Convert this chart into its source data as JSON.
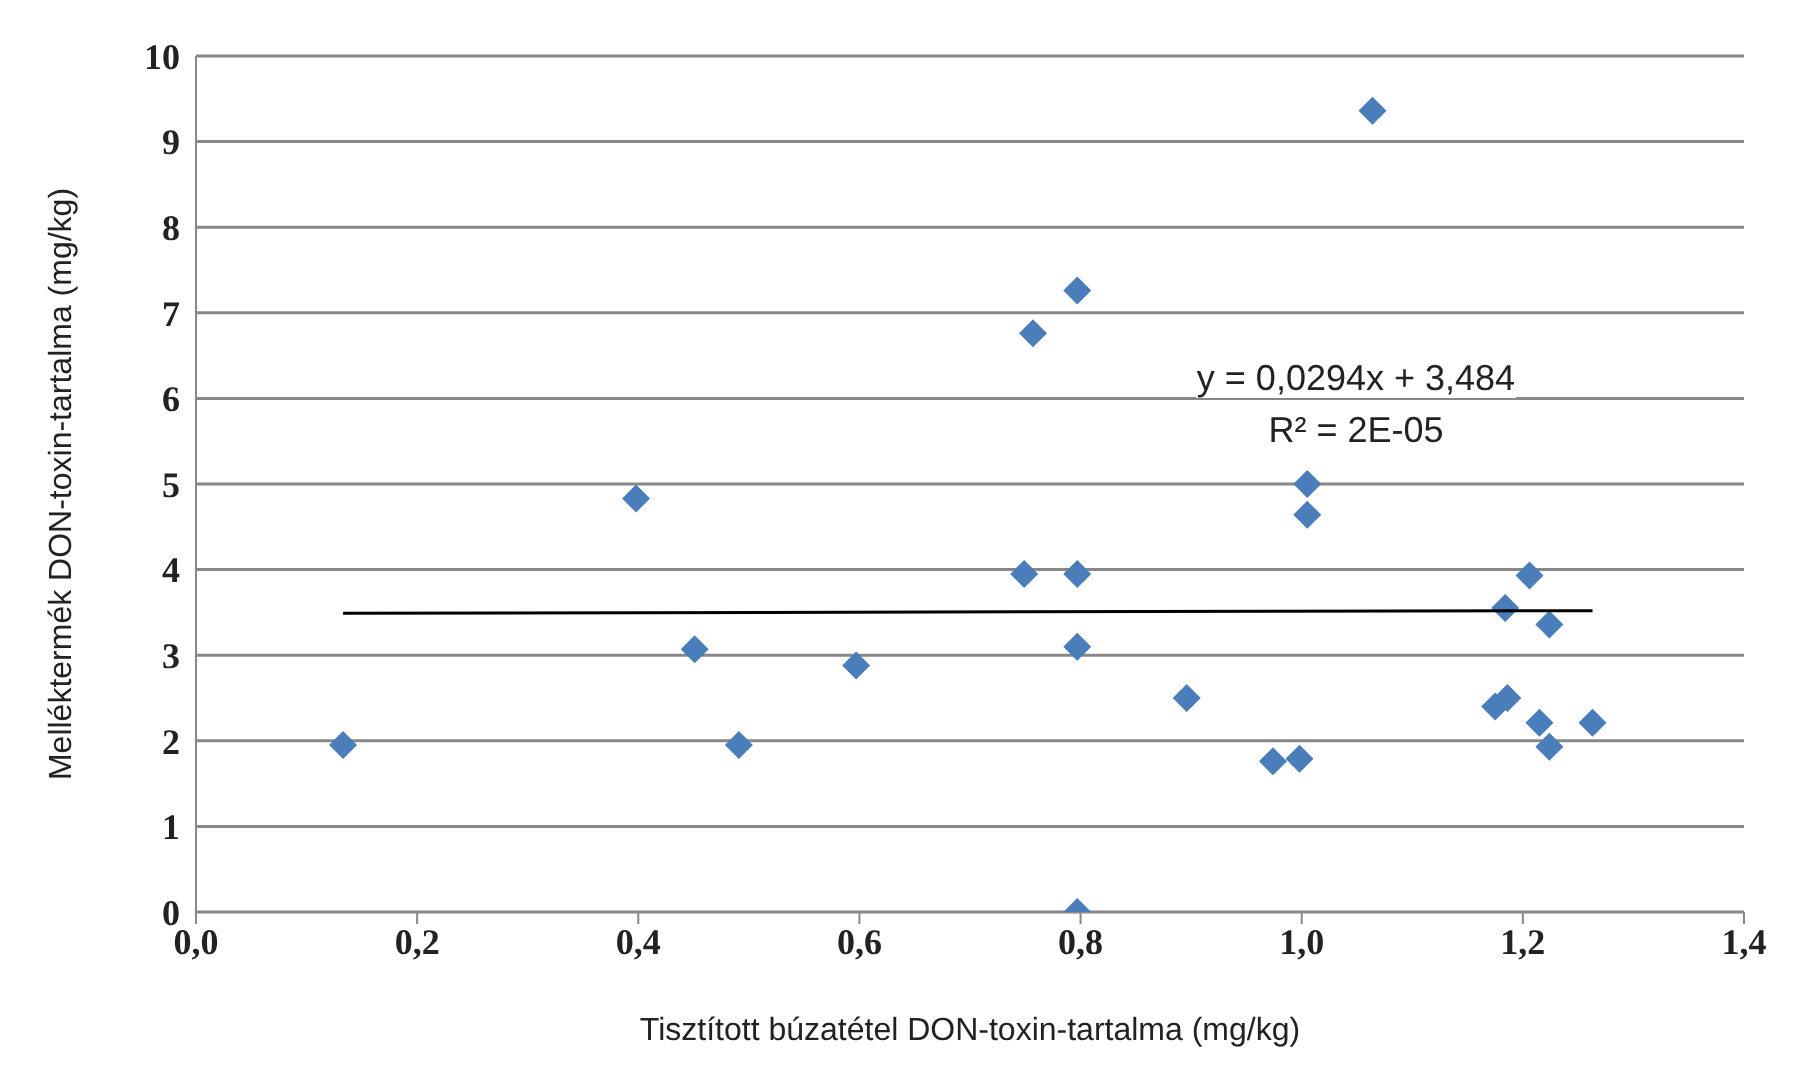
{
  "chart_data": {
    "type": "scatter",
    "xlabel": "Tisztított búzatétel DON-toxin-tartalma (mg/kg)",
    "ylabel": "Melléktermék DON-toxin-tartalma (mg/kg)",
    "series": [
      {
        "color": "#4a7ebb",
        "marker": "diamond",
        "x": [
          0.133,
          0.398,
          0.451,
          0.491,
          0.597,
          0.757,
          0.749,
          0.797,
          0.797,
          0.797,
          0.797,
          0.896,
          0.974,
          0.998,
          1.005,
          1.005,
          1.064,
          1.175,
          1.186,
          1.184,
          1.206,
          1.215,
          1.224,
          1.224,
          1.263
        ],
        "values": [
          1.95,
          4.83,
          3.07,
          1.95,
          2.88,
          6.76,
          3.95,
          7.26,
          3.95,
          3.1,
          0,
          2.5,
          1.76,
          1.79,
          5.0,
          4.64,
          9.36,
          2.4,
          2.5,
          3.55,
          3.93,
          2.21,
          3.36,
          1.93,
          2.21
        ]
      },
      {
        "type": "line",
        "color": "#000000",
        "marker": "none",
        "x": [
          0.133,
          1.263
        ],
        "values": [
          3.49,
          3.52
        ]
      }
    ],
    "xlim": [
      0,
      1.4
    ],
    "xticks": [
      {
        "value": 0,
        "label": "0,0"
      },
      {
        "value": 0.2,
        "label": "0,2"
      },
      {
        "value": 0.4,
        "label": "0,4"
      },
      {
        "value": 0.6,
        "label": "0,6"
      },
      {
        "value": 0.8,
        "label": "0,8"
      },
      {
        "value": 1.0,
        "label": "1,0"
      },
      {
        "value": 1.2,
        "label": "1,2"
      },
      {
        "value": 1.4,
        "label": "1,4"
      }
    ],
    "ylim": [
      0,
      10
    ],
    "yticks": [
      0,
      1,
      2,
      3,
      4,
      5,
      6,
      7,
      8,
      9,
      10
    ],
    "grid": "y",
    "legend": false,
    "annotations": [
      "y = 0,0294x + 3,484",
      "R² = 2E-05"
    ]
  }
}
